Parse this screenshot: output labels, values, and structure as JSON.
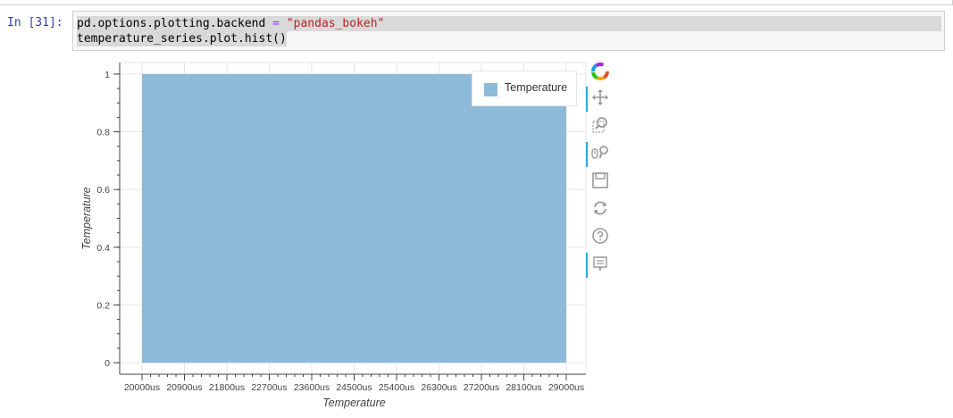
{
  "cell": {
    "prompt": "In [31]:",
    "code_line1_a": "pd.options.plotting.backend ",
    "code_line1_op": "=",
    "code_line1_b": " ",
    "code_line1_str": "\"pandas_bokeh\"",
    "code_line2": "temperature_series.plot.hist()"
  },
  "toolbar": {
    "tools": [
      "bokeh-logo-icon",
      "pan-icon",
      "box-zoom-icon",
      "wheel-zoom-icon",
      "save-icon",
      "reset-icon",
      "help-icon",
      "hover-icon"
    ],
    "active_color": "#26aae1"
  },
  "chart_data": {
    "type": "bar",
    "xlabel": "Temperature",
    "ylabel": "Temperature",
    "x_ticks": [
      "20000us",
      "20900us",
      "21800us",
      "22700us",
      "23600us",
      "24500us",
      "25400us",
      "26300us",
      "27200us",
      "28100us",
      "29000us"
    ],
    "y_ticks": [
      "0",
      "0.2",
      "0.4",
      "0.6",
      "0.8",
      "1"
    ],
    "ylim": [
      -0.04,
      1.04
    ],
    "bins": [
      {
        "start": "20000us",
        "end": "29000us",
        "value": 1
      }
    ],
    "legend": [
      "Temperature"
    ],
    "legend_position": "top-right",
    "bar_color": "#8ebad9",
    "grid": true
  }
}
